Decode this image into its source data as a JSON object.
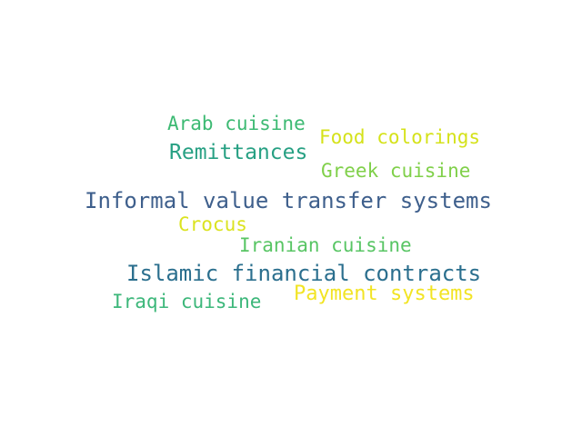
{
  "words": [
    {
      "text": "Arab cuisine",
      "color": "#3dba73"
    },
    {
      "text": "Food colorings",
      "color": "#d5e21a"
    },
    {
      "text": "Remittances",
      "color": "#27a083"
    },
    {
      "text": "Greek cuisine",
      "color": "#80d04a"
    },
    {
      "text": "Informal value transfer systems",
      "color": "#3e5f8c"
    },
    {
      "text": "Crocus",
      "color": "#dbe320"
    },
    {
      "text": "Iranian cuisine",
      "color": "#58c564"
    },
    {
      "text": "Islamic financial contracts",
      "color": "#2b6f8e"
    },
    {
      "text": "Payment systems",
      "color": "#f2e424"
    },
    {
      "text": "Iraqi cuisine",
      "color": "#3cb77a"
    }
  ]
}
